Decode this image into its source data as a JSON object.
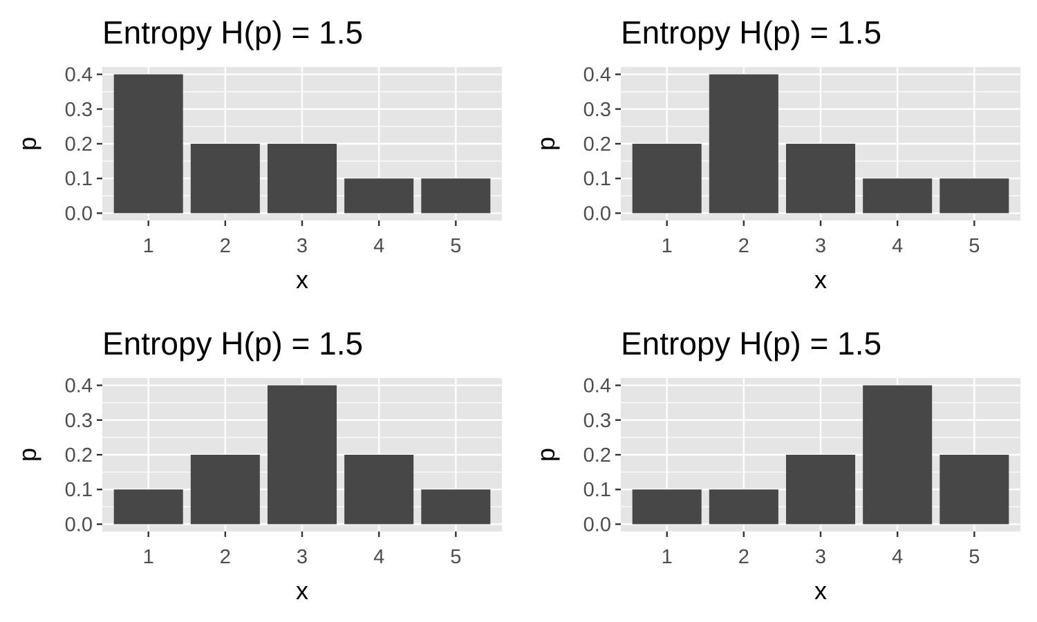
{
  "chart_data": [
    {
      "type": "bar",
      "title": "Entropy H(p) = 1.5",
      "xlabel": "x",
      "ylabel": "p",
      "categories": [
        "1",
        "2",
        "3",
        "4",
        "5"
      ],
      "values": [
        0.4,
        0.2,
        0.2,
        0.1,
        0.1
      ],
      "yticks": [
        "0.0",
        "0.1",
        "0.2",
        "0.3",
        "0.4"
      ],
      "ylim": [
        0,
        0.42
      ],
      "grid": true,
      "legend": "none"
    },
    {
      "type": "bar",
      "title": "Entropy H(p) = 1.5",
      "xlabel": "x",
      "ylabel": "p",
      "categories": [
        "1",
        "2",
        "3",
        "4",
        "5"
      ],
      "values": [
        0.2,
        0.4,
        0.2,
        0.1,
        0.1
      ],
      "yticks": [
        "0.0",
        "0.1",
        "0.2",
        "0.3",
        "0.4"
      ],
      "ylim": [
        0,
        0.42
      ],
      "grid": true,
      "legend": "none"
    },
    {
      "type": "bar",
      "title": "Entropy H(p) = 1.5",
      "xlabel": "x",
      "ylabel": "p",
      "categories": [
        "1",
        "2",
        "3",
        "4",
        "5"
      ],
      "values": [
        0.1,
        0.2,
        0.4,
        0.2,
        0.1
      ],
      "yticks": [
        "0.0",
        "0.1",
        "0.2",
        "0.3",
        "0.4"
      ],
      "ylim": [
        0,
        0.42
      ],
      "grid": true,
      "legend": "none"
    },
    {
      "type": "bar",
      "title": "Entropy H(p) = 1.5",
      "xlabel": "x",
      "ylabel": "p",
      "categories": [
        "1",
        "2",
        "3",
        "4",
        "5"
      ],
      "values": [
        0.1,
        0.1,
        0.2,
        0.4,
        0.2
      ],
      "yticks": [
        "0.0",
        "0.1",
        "0.2",
        "0.3",
        "0.4"
      ],
      "ylim": [
        0,
        0.42
      ],
      "grid": true,
      "legend": "none"
    }
  ],
  "colors": {
    "panel_background": "#e5e5e5",
    "grid": "#ffffff",
    "bar_fill": "#474747",
    "tick_mark": "#333333",
    "tick_text": "#4d4d4d",
    "text": "#000000"
  }
}
